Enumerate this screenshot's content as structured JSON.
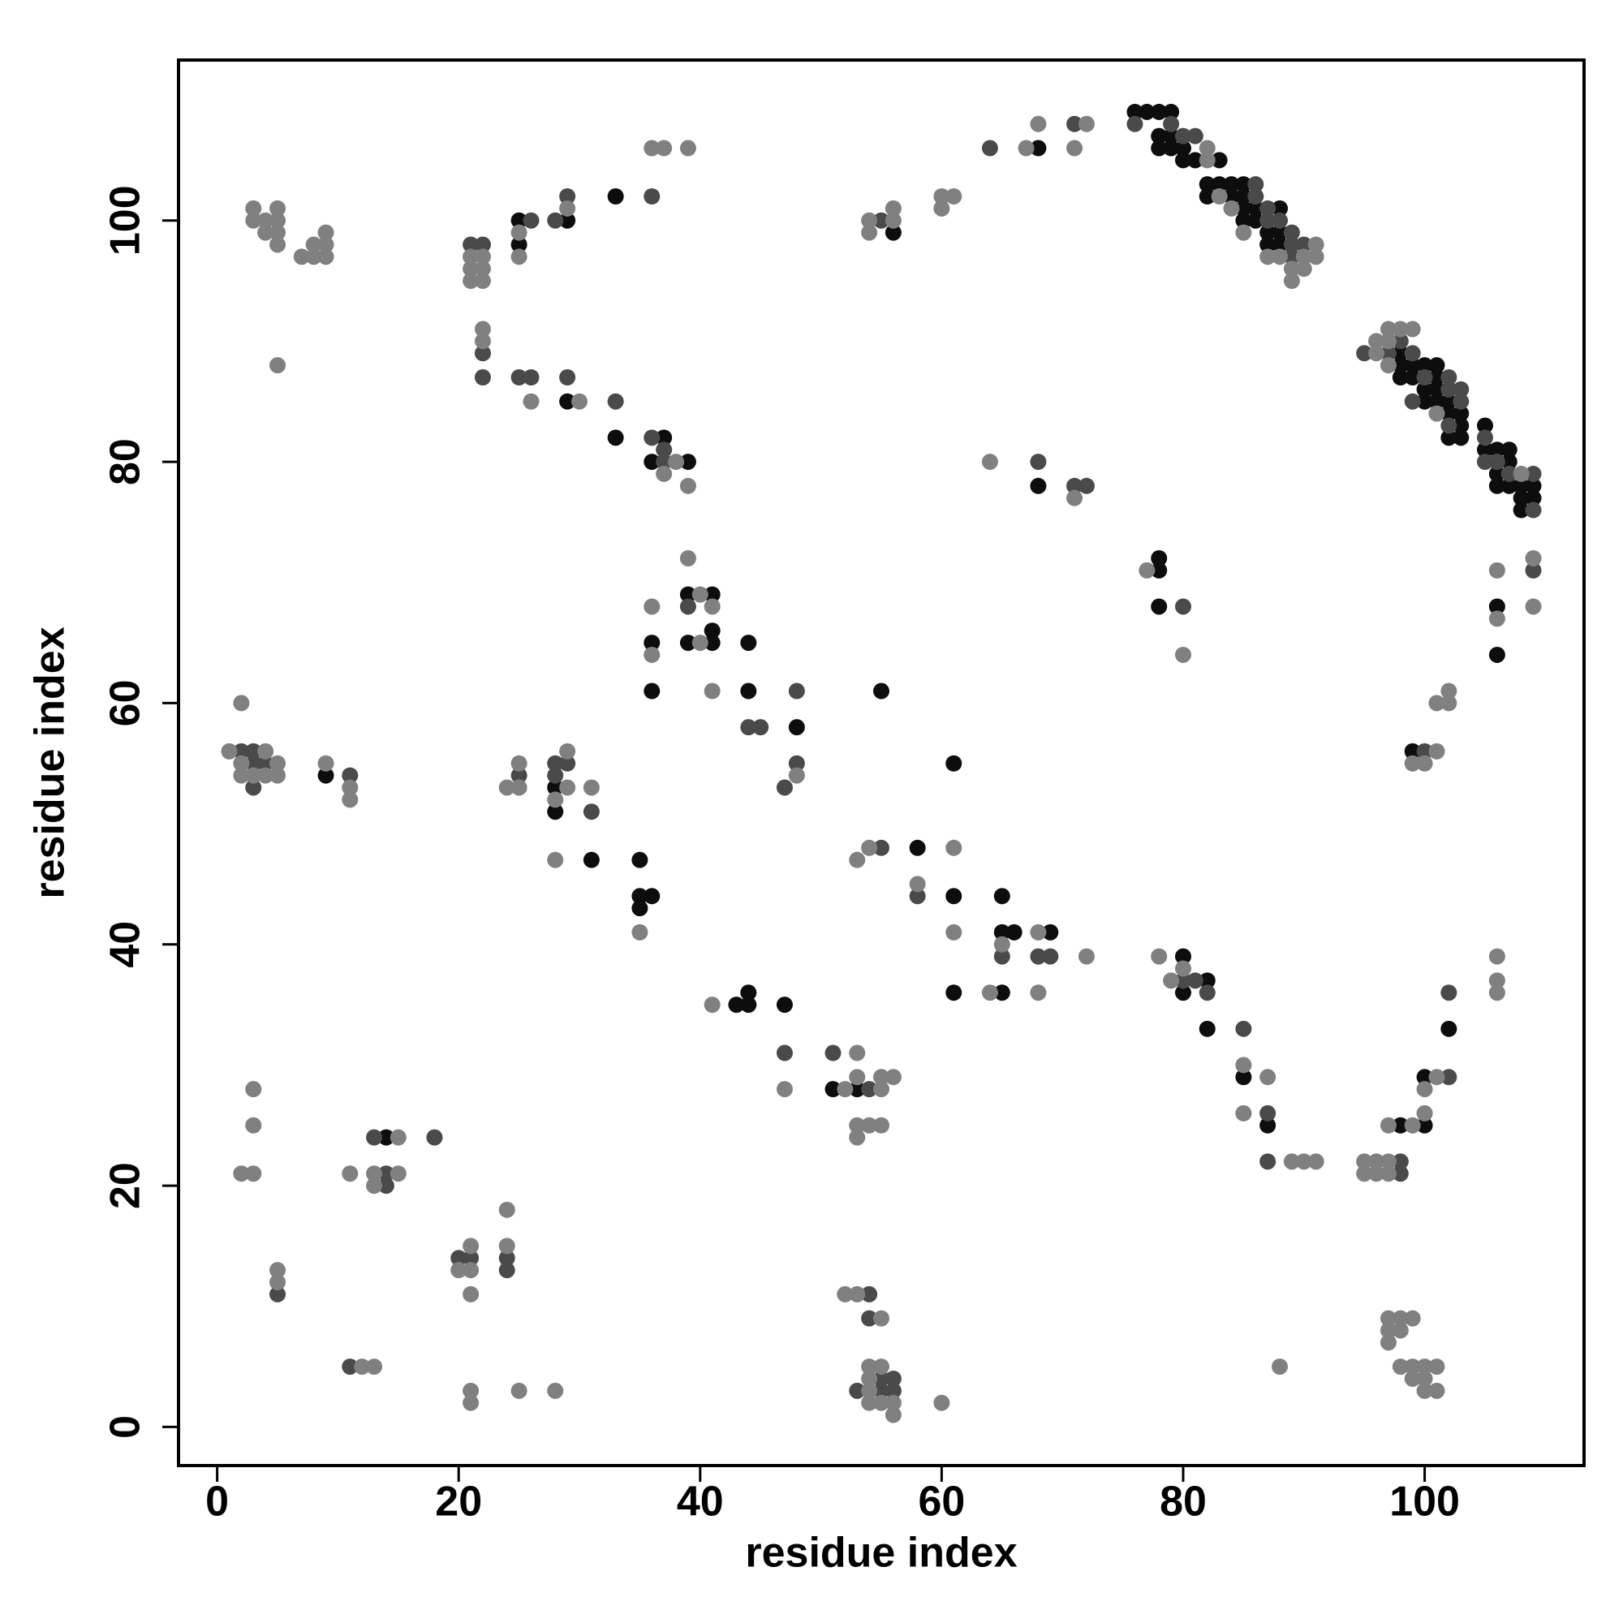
{
  "chart_data": {
    "type": "scatter",
    "xlabel": "residue index",
    "ylabel": "residue index",
    "xlim": [
      -3.2,
      113.2
    ],
    "ylim": [
      -3.2,
      113.3
    ],
    "xticks": [
      0,
      20,
      40,
      60,
      80,
      100
    ],
    "yticks": [
      0,
      20,
      40,
      60,
      80,
      100
    ],
    "series": [
      {
        "color": "#0d0d0d",
        "x": [
          76,
          77,
          78,
          79,
          78,
          79,
          78,
          79,
          80,
          80,
          81,
          83,
          82,
          83,
          84,
          85,
          82,
          84,
          85,
          85,
          86,
          88,
          85,
          86,
          87,
          88,
          87,
          88,
          98,
          98,
          99,
          100,
          101,
          98,
          99,
          101,
          100,
          101,
          100,
          101,
          102,
          102,
          103,
          103,
          102,
          103,
          105,
          105,
          106,
          107,
          107,
          106,
          106,
          107,
          108,
          109,
          108,
          109,
          108,
          25,
          25,
          29,
          33,
          29,
          33,
          36,
          37,
          39,
          56,
          68,
          68,
          36,
          36,
          39,
          39,
          41,
          41,
          41,
          44,
          44,
          48,
          55,
          78,
          78,
          78,
          106,
          106,
          99,
          9,
          28,
          28,
          31,
          35,
          35,
          35,
          36,
          58,
          61,
          61,
          61,
          65,
          65,
          65,
          66,
          69,
          80,
          80,
          82,
          82,
          85,
          87,
          98,
          100,
          100,
          102,
          43,
          44,
          44,
          47,
          51,
          53,
          14
        ],
        "values": [
          109,
          109,
          109,
          109,
          107,
          107,
          106,
          106,
          106,
          105,
          105,
          105,
          103,
          103,
          103,
          103,
          102,
          102,
          102,
          101,
          101,
          101,
          100,
          100,
          99,
          99,
          98,
          98,
          89,
          88,
          88,
          88,
          88,
          87,
          87,
          87,
          86,
          86,
          85,
          85,
          85,
          84,
          84,
          83,
          82,
          82,
          83,
          81,
          81,
          81,
          80,
          79,
          78,
          78,
          78,
          78,
          77,
          77,
          76,
          100,
          98,
          100,
          102,
          85,
          82,
          80,
          82,
          80,
          99,
          106,
          78,
          65,
          61,
          69,
          65,
          69,
          66,
          65,
          65,
          61,
          58,
          61,
          72,
          71,
          68,
          68,
          64,
          56,
          54,
          53,
          51,
          47,
          47,
          44,
          43,
          44,
          48,
          55,
          44,
          36,
          44,
          41,
          36,
          41,
          41,
          39,
          36,
          37,
          33,
          29,
          25,
          25,
          29,
          25,
          33,
          35,
          36,
          35,
          35,
          28,
          28,
          24
        ]
      },
      {
        "color": "#4a4a4a",
        "x": [
          76,
          79,
          80,
          81,
          86,
          86,
          87,
          87,
          88,
          89,
          89,
          90,
          89,
          98,
          95,
          97,
          99,
          100,
          102,
          102,
          103,
          99,
          103,
          102,
          105,
          105,
          106,
          107,
          109,
          109,
          21,
          22,
          22,
          22,
          26,
          28,
          29,
          25,
          26,
          29,
          33,
          36,
          37,
          37,
          36,
          64,
          71,
          55,
          68,
          71,
          72,
          39,
          44,
          45,
          48,
          48,
          47,
          80,
          109,
          100,
          2,
          3,
          3,
          3,
          4,
          11,
          25,
          28,
          28,
          29,
          31,
          55,
          58,
          65,
          68,
          69,
          80,
          81,
          82,
          85,
          87,
          87,
          98,
          98,
          102,
          102,
          47,
          51,
          54,
          5,
          11,
          13,
          14,
          14,
          18,
          20,
          21,
          24,
          24,
          54,
          54,
          53,
          55,
          55,
          56,
          56
        ],
        "values": [
          108,
          108,
          107,
          107,
          103,
          102,
          101,
          100,
          100,
          99,
          98,
          98,
          97,
          90,
          89,
          89,
          89,
          87,
          87,
          86,
          86,
          85,
          85,
          83,
          82,
          80,
          80,
          79,
          79,
          76,
          98,
          98,
          89,
          87,
          100,
          100,
          102,
          87,
          87,
          87,
          85,
          82,
          81,
          80,
          102,
          106,
          108,
          100,
          80,
          78,
          78,
          68,
          58,
          58,
          61,
          55,
          53,
          68,
          71,
          56,
          56,
          56,
          55,
          53,
          55,
          54,
          54,
          55,
          54,
          55,
          51,
          48,
          44,
          39,
          39,
          39,
          37,
          37,
          36,
          33,
          26,
          22,
          22,
          21,
          36,
          29,
          31,
          31,
          28,
          11,
          5,
          24,
          21,
          20,
          24,
          14,
          14,
          14,
          13,
          11,
          9,
          3,
          4,
          3,
          4,
          3
        ]
      },
      {
        "color": "#808080",
        "x": [
          82,
          82,
          83,
          84,
          85,
          91,
          87,
          88,
          90,
          91,
          89,
          90,
          89,
          97,
          98,
          99,
          96,
          97,
          96,
          97,
          101,
          108,
          3,
          5,
          3,
          4,
          5,
          4,
          5,
          5,
          7,
          8,
          9,
          8,
          9,
          9,
          5,
          21,
          22,
          21,
          22,
          21,
          22,
          22,
          22,
          25,
          25,
          29,
          36,
          37,
          39,
          26,
          30,
          37,
          38,
          39,
          67,
          68,
          71,
          72,
          54,
          54,
          56,
          56,
          60,
          60,
          61,
          64,
          71,
          39,
          36,
          36,
          40,
          40,
          41,
          41,
          48,
          77,
          80,
          106,
          106,
          109,
          109,
          102,
          102,
          101,
          99,
          100,
          101,
          1,
          2,
          2,
          2,
          3,
          4,
          4,
          5,
          5,
          9,
          11,
          11,
          24,
          25,
          25,
          28,
          28,
          29,
          29,
          31,
          35,
          53,
          54,
          58,
          61,
          61,
          65,
          64,
          68,
          68,
          72,
          78,
          79,
          80,
          85,
          85,
          87,
          89,
          90,
          91,
          95,
          95,
          96,
          96,
          97,
          97,
          97,
          99,
          100,
          100,
          101,
          106,
          106,
          106,
          41,
          47,
          52,
          53,
          53,
          53,
          53,
          54,
          55,
          55,
          55,
          56,
          2,
          3,
          3,
          3,
          5,
          5,
          11,
          12,
          13,
          13,
          13,
          15,
          15,
          20,
          21,
          21,
          21,
          21,
          21,
          24,
          24,
          25,
          28,
          52,
          53,
          55,
          54,
          54,
          54,
          54,
          55,
          55,
          56,
          56,
          60,
          88,
          97,
          97,
          97,
          98,
          98,
          98,
          99,
          99,
          99,
          100,
          100,
          100,
          101,
          101
        ],
        "values": [
          106,
          105,
          102,
          101,
          99,
          98,
          97,
          97,
          97,
          97,
          96,
          96,
          95,
          91,
          91,
          91,
          90,
          90,
          89,
          88,
          84,
          79,
          101,
          101,
          100,
          100,
          100,
          99,
          99,
          98,
          97,
          97,
          97,
          98,
          98,
          99,
          88,
          97,
          97,
          96,
          96,
          95,
          95,
          91,
          90,
          99,
          97,
          101,
          106,
          106,
          106,
          85,
          85,
          79,
          80,
          78,
          106,
          108,
          106,
          108,
          100,
          99,
          101,
          100,
          102,
          101,
          102,
          80,
          77,
          72,
          68,
          64,
          69,
          65,
          68,
          61,
          54,
          71,
          64,
          71,
          67,
          72,
          68,
          61,
          60,
          60,
          55,
          55,
          56,
          56,
          60,
          55,
          54,
          54,
          56,
          54,
          55,
          54,
          55,
          53,
          52,
          53,
          55,
          53,
          52,
          47,
          56,
          53,
          53,
          41,
          47,
          48,
          45,
          48,
          41,
          40,
          36,
          41,
          36,
          39,
          39,
          37,
          38,
          30,
          26,
          29,
          22,
          22,
          22,
          22,
          21,
          22,
          21,
          25,
          22,
          21,
          25,
          28,
          26,
          29,
          39,
          37,
          36,
          35,
          28,
          28,
          31,
          29,
          25,
          24,
          25,
          29,
          28,
          25,
          29,
          21,
          28,
          25,
          21,
          13,
          12,
          21,
          5,
          21,
          20,
          5,
          24,
          21,
          13,
          15,
          13,
          11,
          3,
          2,
          18,
          15,
          3,
          3,
          11,
          11,
          9,
          5,
          4,
          3,
          2,
          5,
          2,
          2,
          1,
          2,
          5,
          9,
          8,
          7,
          9,
          8,
          5,
          9,
          5,
          4,
          5,
          4,
          3,
          5,
          3
        ]
      }
    ]
  }
}
